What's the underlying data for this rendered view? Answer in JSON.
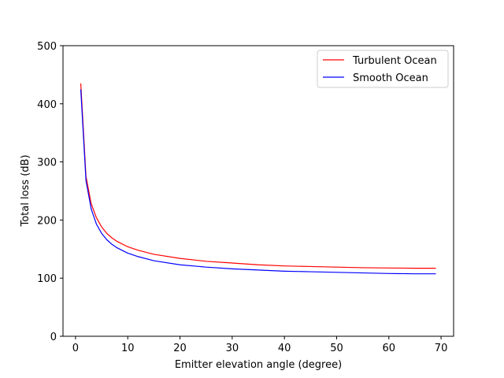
{
  "chart_data": {
    "type": "line",
    "title": "",
    "xlabel": "Emitter elevation angle (degree)",
    "ylabel": "Total loss (dB)",
    "xlim": [
      -2.4,
      72.4
    ],
    "ylim": [
      0,
      500
    ],
    "xticks": [
      0,
      10,
      20,
      30,
      40,
      50,
      60,
      70
    ],
    "yticks": [
      0,
      100,
      200,
      300,
      400,
      500
    ],
    "grid": false,
    "legend_position": "top-right",
    "series": [
      {
        "name": "Turbulent Ocean",
        "color": "#ff0000",
        "x": [
          1,
          2,
          3,
          4,
          5,
          6,
          7,
          8,
          10,
          12,
          15,
          20,
          25,
          30,
          35,
          40,
          45,
          50,
          55,
          60,
          65,
          69
        ],
        "y": [
          435,
          275,
          228,
          204,
          188,
          177,
          169,
          163,
          154,
          148,
          141,
          134,
          129,
          126,
          123,
          121,
          120,
          119,
          118,
          117.5,
          117,
          117
        ]
      },
      {
        "name": "Smooth Ocean",
        "color": "#0000ff",
        "x": [
          1,
          2,
          3,
          4,
          5,
          6,
          7,
          8,
          10,
          12,
          15,
          20,
          25,
          30,
          35,
          40,
          45,
          50,
          55,
          60,
          65,
          69
        ],
        "y": [
          425,
          268,
          219,
          193,
          177,
          166,
          158,
          152,
          143,
          137,
          130,
          123,
          119,
          116,
          114,
          112,
          111,
          110,
          109,
          108,
          107.5,
          107.5
        ]
      }
    ]
  }
}
